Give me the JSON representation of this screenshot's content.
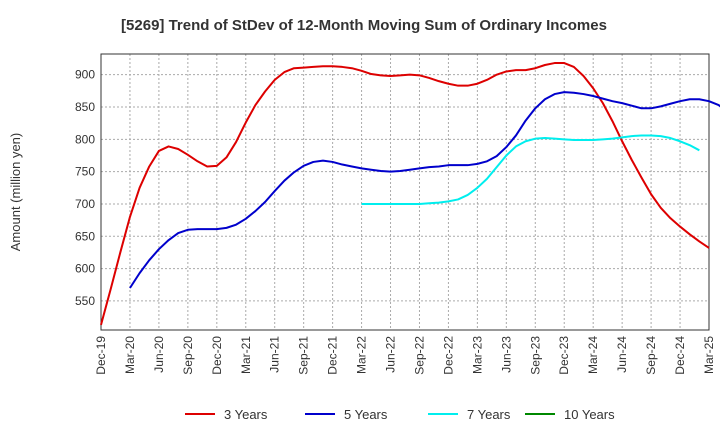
{
  "chart_data": {
    "type": "line",
    "title": "[5269]  Trend of StDev of 12-Month Moving Sum of Ordinary Incomes",
    "ylabel": "Amount (million yen)",
    "xlabel": "",
    "ylim": [
      505,
      932
    ],
    "yticks": [
      550,
      600,
      650,
      700,
      750,
      800,
      850,
      900
    ],
    "x_tick_labels": [
      "Dec-19",
      "Mar-20",
      "Jun-20",
      "Sep-20",
      "Dec-20",
      "Mar-21",
      "Jun-21",
      "Sep-21",
      "Dec-21",
      "Mar-22",
      "Jun-22",
      "Sep-22",
      "Dec-22",
      "Mar-23",
      "Jun-23",
      "Sep-23",
      "Dec-23",
      "Mar-24",
      "Jun-24",
      "Sep-24",
      "Dec-24",
      "Mar-25"
    ],
    "grid": true,
    "legend_position": "bottom",
    "series": [
      {
        "name": "3 Years",
        "color": "#dd0000",
        "start_month_index": 0,
        "values": [
          513,
          568,
          625,
          680,
          725,
          758,
          782,
          789,
          785,
          776,
          766,
          758,
          759,
          772,
          796,
          826,
          853,
          874,
          892,
          904,
          910,
          911,
          912,
          913,
          913,
          912,
          910,
          906,
          901,
          899,
          898,
          899,
          900,
          899,
          895,
          890,
          886,
          883,
          883,
          886,
          892,
          900,
          905,
          907,
          907,
          910,
          915,
          918,
          918,
          912,
          898,
          879,
          856,
          828,
          797,
          768,
          741,
          715,
          694,
          678,
          665,
          653,
          642,
          632
        ]
      },
      {
        "name": "5 Years",
        "color": "#0000cc",
        "start_month_index": 3,
        "values": [
          570,
          593,
          613,
          630,
          644,
          655,
          660,
          661,
          661,
          661,
          663,
          668,
          677,
          689,
          703,
          720,
          736,
          749,
          759,
          765,
          767,
          765,
          761,
          758,
          755,
          753,
          751,
          750,
          751,
          753,
          755,
          757,
          758,
          760,
          760,
          760,
          762,
          766,
          774,
          788,
          806,
          829,
          848,
          862,
          870,
          873,
          872,
          870,
          867,
          863,
          859,
          856,
          852,
          848,
          848,
          851,
          855,
          859,
          862,
          862,
          859,
          853,
          841
        ]
      },
      {
        "name": "7 Years",
        "color": "#00eeee",
        "start_month_index": 27,
        "values": [
          700,
          700,
          700,
          700,
          700,
          700,
          700,
          701,
          702,
          704,
          707,
          714,
          725,
          739,
          757,
          775,
          789,
          797,
          801,
          802,
          801,
          800,
          799,
          799,
          799,
          800,
          801,
          803,
          805,
          806,
          806,
          805,
          802,
          797,
          791,
          783
        ]
      },
      {
        "name": "10 Years",
        "color": "#008800",
        "start_month_index": 0,
        "values": []
      }
    ]
  }
}
